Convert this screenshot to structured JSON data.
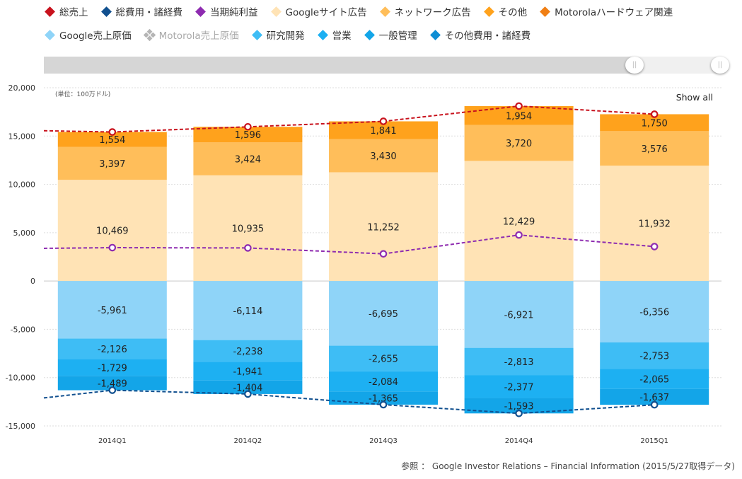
{
  "legend": [
    {
      "label": "総売上",
      "color": "#c8121d",
      "shape": "diamond"
    },
    {
      "label": "総費用・諸経費",
      "color": "#11508f",
      "shape": "diamond"
    },
    {
      "label": "当期純利益",
      "color": "#8e2bb0",
      "shape": "diamond"
    },
    {
      "label": "Googleサイト広告",
      "color": "#ffe3b5",
      "shape": "diamond"
    },
    {
      "label": "ネットワーク広告",
      "color": "#ffbe5a",
      "shape": "diamond"
    },
    {
      "label": "その他",
      "color": "#ffa21c",
      "shape": "diamond"
    },
    {
      "label": "Motorolaハードウェア関連",
      "color": "#f07f14",
      "shape": "diamond"
    },
    {
      "label": "Google売上原価",
      "color": "#8fd4f8",
      "shape": "diamond"
    },
    {
      "label": "Motorola売上原価",
      "color": "#b5b5b5",
      "shape": "clover",
      "dim": true
    },
    {
      "label": "研究開発",
      "color": "#3ebdf5",
      "shape": "diamond"
    },
    {
      "label": "営業",
      "color": "#1db0f2",
      "shape": "diamond"
    },
    {
      "label": "一般管理",
      "color": "#13a5e8",
      "shape": "diamond"
    },
    {
      "label": "その他費用・諸経費",
      "color": "#0f8ed4",
      "shape": "diamond"
    }
  ],
  "unit_label": "(単位：100万ドル)",
  "show_all": "Show all",
  "source": "参照 ： Google Investor Relations – Financial Information (2015/5/27取得データ)",
  "chart_data": {
    "type": "bar",
    "stacked": true,
    "categories": [
      "2014Q1",
      "2014Q2",
      "2014Q3",
      "2014Q4",
      "2015Q1"
    ],
    "ylim": [
      -15000,
      20000
    ],
    "yticks": [
      20000,
      15000,
      10000,
      5000,
      0,
      -5000,
      -10000,
      -15000
    ],
    "ytick_labels": [
      "20,000",
      "15,000",
      "10,000",
      "5,000",
      "0",
      "-5,000",
      "-10,000",
      "-15,000"
    ],
    "grid": true,
    "series": [
      {
        "name": "Googleサイト広告",
        "color": "#ffe3b5",
        "values": [
          10469,
          10935,
          11252,
          12429,
          11932
        ],
        "labels": [
          "10,469",
          "10,935",
          "11,252",
          "12,429",
          "11,932"
        ]
      },
      {
        "name": "ネットワーク広告",
        "color": "#ffbe5a",
        "values": [
          3397,
          3424,
          3430,
          3720,
          3576
        ],
        "labels": [
          "3,397",
          "3,424",
          "3,430",
          "3,720",
          "3,576"
        ]
      },
      {
        "name": "その他",
        "color": "#ffa21c",
        "values": [
          1554,
          1596,
          1841,
          1954,
          1750
        ],
        "labels": [
          "1,554",
          "1,596",
          "1,841",
          "1,954",
          "1,750"
        ]
      },
      {
        "name": "Google売上原価",
        "color": "#8fd4f8",
        "values": [
          -5961,
          -6114,
          -6695,
          -6921,
          -6356
        ],
        "labels": [
          "-5,961",
          "-6,114",
          "-6,695",
          "-6,921",
          "-6,356"
        ]
      },
      {
        "name": "研究開発",
        "color": "#3ebdf5",
        "values": [
          -2126,
          -2238,
          -2655,
          -2813,
          -2753
        ],
        "labels": [
          "-2,126",
          "-2,238",
          "-2,655",
          "-2,813",
          "-2,753"
        ]
      },
      {
        "name": "営業",
        "color": "#1db0f2",
        "values": [
          -1729,
          -1941,
          -2084,
          -2377,
          -2065
        ],
        "labels": [
          "-1,729",
          "-1,941",
          "-2,084",
          "-2,377",
          "-2,065"
        ]
      },
      {
        "name": "一般管理",
        "color": "#13a5e8",
        "values": [
          -1489,
          -1404,
          -1365,
          -1593,
          -1637
        ],
        "labels": [
          "-1,489",
          "-1,404",
          "-1,365",
          "-1,593",
          "-1,637"
        ]
      }
    ],
    "lines": [
      {
        "name": "総売上",
        "color": "#c8121d",
        "values": [
          15420,
          15955,
          16523,
          18103,
          17258
        ],
        "left_value": 15550
      },
      {
        "name": "当期純利益",
        "color": "#8e2bb0",
        "values": [
          3450,
          3420,
          2810,
          4760,
          3560
        ],
        "left_value": 3380
      },
      {
        "name": "総費用・諸経費",
        "color": "#11508f",
        "values": [
          -11305,
          -11697,
          -12799,
          -13704,
          -12811
        ],
        "left_value": -12100
      }
    ]
  }
}
